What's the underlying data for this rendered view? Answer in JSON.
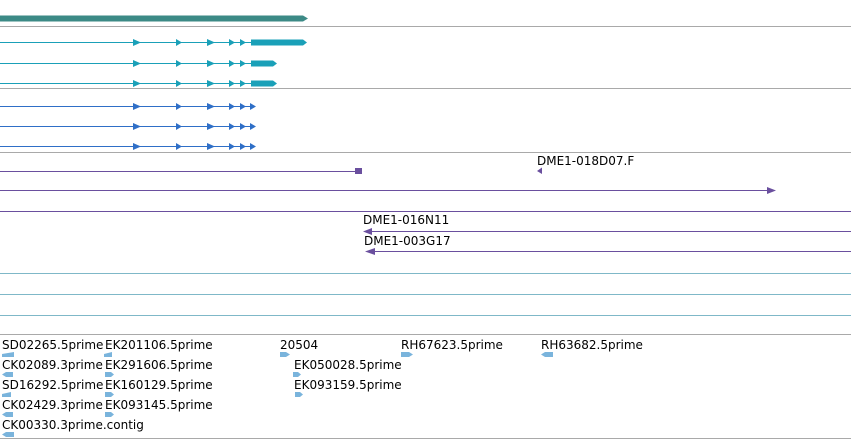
{
  "colors": {
    "separator": "#a9a9a9",
    "top_gene": "#3c8a86",
    "transcript": "#1aa0b8",
    "protein": "#2f6fc7",
    "clone": "#6a4f9e",
    "empty_track": "#7fb8c8",
    "est": "#7ab4dc"
  },
  "clone_labels": {
    "dme1_018d07_f": "DME1-018D07.F",
    "dme1_016n11": "DME1-016N11",
    "dme1_003g17": "DME1-003G17"
  },
  "est_labels": {
    "sd02265_5prime": "SD02265.5prime",
    "ek201106_5prime": "EK201106.5prime",
    "n20504": "20504",
    "rh67623_5prime": "RH67623.5prime",
    "rh63682_5prime": "RH63682.5prime",
    "ck02089_3prime": "CK02089.3prime",
    "ek291606_5prime": "EK291606.5prime",
    "ek050028_5prime": "EK050028.5prime",
    "sd16292_5prime": "SD16292.5prime",
    "ek160129_5prime": "EK160129.5prime",
    "ek093159_5prime": "EK093159.5prime",
    "ck02429_3prime": "CK02429.3prime",
    "ek093145_5prime": "EK093145.5prime",
    "ck00330_3prime_contig": "CK00330.3prime.contig"
  }
}
